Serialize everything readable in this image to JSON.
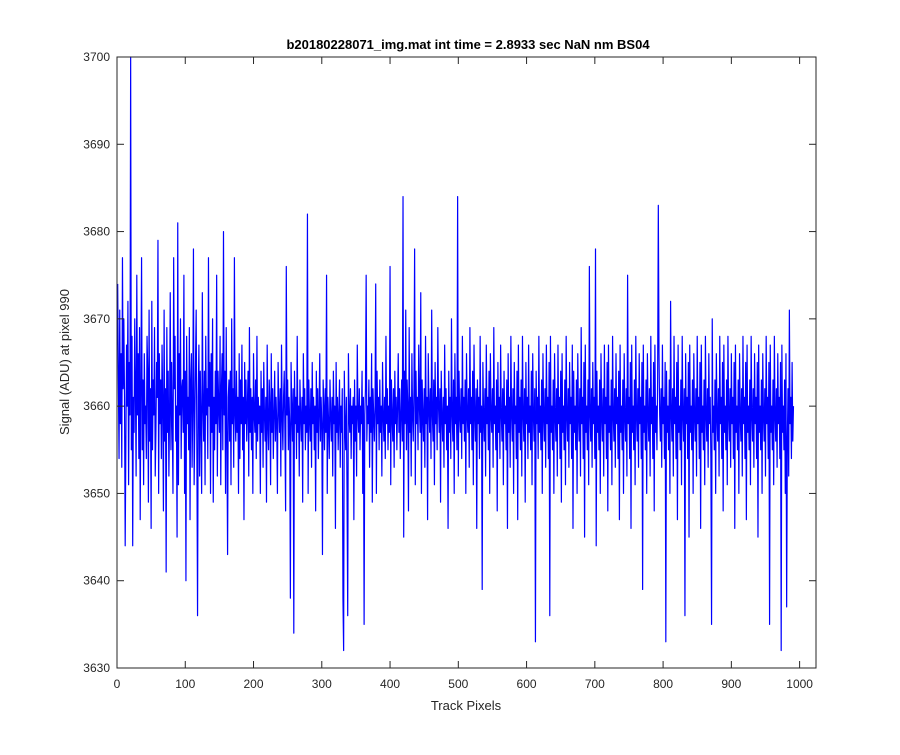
{
  "chart_data": {
    "type": "line",
    "title": "b20180228071_img.mat int time = 2.8933 sec  NaN nm BS04",
    "xlabel": "Track Pixels",
    "ylabel": "Signal (ADU) at pixel 990",
    "xlim": [
      0,
      1024
    ],
    "ylim": [
      3630,
      3700
    ],
    "x_ticks": [
      0,
      100,
      200,
      300,
      400,
      500,
      600,
      700,
      800,
      900,
      1000
    ],
    "y_ticks": [
      3630,
      3640,
      3650,
      3660,
      3670,
      3680,
      3690,
      3700
    ],
    "grid": false,
    "line_color": "#0000ff",
    "series": [
      {
        "name": "",
        "x_start": 1,
        "x_step": 1,
        "values": [
          3674,
          3663,
          3654,
          3671,
          3658,
          3666,
          3653,
          3677,
          3662,
          3670,
          3661,
          3644,
          3656,
          3667,
          3660,
          3672,
          3651,
          3665,
          3659,
          3700,
          3655,
          3668,
          3644,
          3661,
          3657,
          3670,
          3662,
          3652,
          3675,
          3659,
          3666,
          3654,
          3669,
          3647,
          3662,
          3677,
          3655,
          3663,
          3651,
          3666,
          3658,
          3660,
          3654,
          3668,
          3664,
          3649,
          3671,
          3656,
          3662,
          3646,
          3672,
          3655,
          3663,
          3659,
          3669,
          3652,
          3657,
          3665,
          3661,
          3679,
          3650,
          3666,
          3658,
          3663,
          3654,
          3667,
          3660,
          3648,
          3671,
          3656,
          3662,
          3641,
          3669,
          3657,
          3664,
          3652,
          3659,
          3673,
          3655,
          3665,
          3658,
          3650,
          3677,
          3662,
          3668,
          3656,
          3660,
          3645,
          3681,
          3651,
          3666,
          3659,
          3670,
          3654,
          3662,
          3663,
          3657,
          3675,
          3650,
          3664,
          3640,
          3668,
          3658,
          3661,
          3655,
          3669,
          3647,
          3663,
          3666,
          3653,
          3660,
          3678,
          3651,
          3658,
          3665,
          3671,
          3655,
          3636,
          3661,
          3667,
          3652,
          3664,
          3658,
          3650,
          3673,
          3660,
          3656,
          3664,
          3651,
          3668,
          3659,
          3662,
          3654,
          3677,
          3660,
          3665,
          3650,
          3666,
          3657,
          3670,
          3649,
          3661,
          3655,
          3664,
          3658,
          3675,
          3652,
          3664,
          3660,
          3657,
          3668,
          3651,
          3662,
          3666,
          3655,
          3680,
          3659,
          3664,
          3650,
          3669,
          3657,
          3643,
          3661,
          3663,
          3656,
          3664,
          3651,
          3670,
          3658,
          3662,
          3653,
          3677,
          3659,
          3656,
          3664,
          3657,
          3661,
          3650,
          3666,
          3654,
          3663,
          3658,
          3667,
          3655,
          3661,
          3647,
          3665,
          3658,
          3663,
          3656,
          3660,
          3664,
          3652,
          3669,
          3657,
          3662,
          3655,
          3661,
          3650,
          3666,
          3659,
          3657,
          3663,
          3654,
          3668,
          3656,
          3661,
          3658,
          3660,
          3650,
          3664,
          3657,
          3662,
          3653,
          3665,
          3659,
          3656,
          3661,
          3649,
          3667,
          3658,
          3655,
          3663,
          3660,
          3651,
          3666,
          3657,
          3662,
          3654,
          3659,
          3664,
          3656,
          3661,
          3658,
          3650,
          3665,
          3660,
          3657,
          3662,
          3652,
          3667,
          3659,
          3655,
          3661,
          3664,
          3657,
          3648,
          3676,
          3659,
          3663,
          3655,
          3661,
          3658,
          3638,
          3665,
          3660,
          3656,
          3662,
          3634,
          3664,
          3658,
          3661,
          3654,
          3668,
          3657,
          3660,
          3652,
          3663,
          3659,
          3656,
          3661,
          3649,
          3666,
          3658,
          3662,
          3655,
          3660,
          3657,
          3682,
          3650,
          3663,
          3659,
          3656,
          3662,
          3653,
          3665,
          3658,
          3661,
          3655,
          3660,
          3648,
          3664,
          3657,
          3662,
          3654,
          3659,
          3666,
          3656,
          3661,
          3658,
          3643,
          3663,
          3660,
          3655,
          3662,
          3657,
          3675,
          3650,
          3661,
          3658,
          3654,
          3663,
          3659,
          3656,
          3661,
          3652,
          3664,
          3658,
          3660,
          3646,
          3665,
          3657,
          3661,
          3655,
          3659,
          3663,
          3653,
          3660,
          3657,
          3662,
          3638,
          3632,
          3664,
          3658,
          3655,
          3661,
          3650,
          3636,
          3666,
          3659,
          3657,
          3662,
          3654,
          3660,
          3658,
          3661,
          3647,
          3663,
          3656,
          3660,
          3652,
          3667,
          3659,
          3657,
          3662,
          3655,
          3660,
          3658,
          3664,
          3650,
          3661,
          3635,
          3659,
          3662,
          3675,
          3656,
          3660,
          3658,
          3663,
          3653,
          3661,
          3657,
          3666,
          3649,
          3662,
          3659,
          3656,
          3660,
          3674,
          3650,
          3664,
          3658,
          3661,
          3655,
          3663,
          3657,
          3660,
          3652,
          3665,
          3659,
          3656,
          3661,
          3654,
          3668,
          3658,
          3662,
          3655,
          3660,
          3657,
          3676,
          3651,
          3663,
          3659,
          3656,
          3662,
          3653,
          3664,
          3658,
          3661,
          3655,
          3660,
          3666,
          3657,
          3662,
          3654,
          3659,
          3663,
          3656,
          3684,
          3645,
          3664,
          3658,
          3671,
          3655,
          3663,
          3660,
          3648,
          3669,
          3657,
          3661,
          3652,
          3666,
          3659,
          3656,
          3662,
          3678,
          3651,
          3664,
          3658,
          3661,
          3655,
          3667,
          3660,
          3657,
          3673,
          3650,
          3663,
          3659,
          3656,
          3662,
          3653,
          3668,
          3658,
          3661,
          3647,
          3666,
          3660,
          3657,
          3662,
          3654,
          3671,
          3659,
          3656,
          3663,
          3651,
          3665,
          3658,
          3661,
          3655,
          3669,
          3660,
          3657,
          3662,
          3649,
          3664,
          3659,
          3656,
          3661,
          3653,
          3667,
          3658,
          3662,
          3655,
          3660,
          3646,
          3664,
          3657,
          3661,
          3654,
          3670,
          3659,
          3656,
          3663,
          3650,
          3666,
          3658,
          3661,
          3655,
          3684,
          3652,
          3664,
          3659,
          3657,
          3662,
          3654,
          3668,
          3658,
          3661,
          3656,
          3663,
          3650,
          3666,
          3659,
          3657,
          3662,
          3653,
          3669,
          3658,
          3661,
          3655,
          3664,
          3651,
          3667,
          3659,
          3656,
          3662,
          3646,
          3663,
          3658,
          3661,
          3654,
          3668,
          3657,
          3660,
          3639,
          3665,
          3659,
          3656,
          3662,
          3652,
          3667,
          3658,
          3661,
          3655,
          3664,
          3650,
          3666,
          3659,
          3657,
          3662,
          3653,
          3669,
          3658,
          3660,
          3655,
          3663,
          3648,
          3665,
          3657,
          3661,
          3654,
          3667,
          3659,
          3656,
          3662,
          3651,
          3664,
          3658,
          3660,
          3655,
          3663,
          3646,
          3666,
          3657,
          3661,
          3653,
          3668,
          3659,
          3656,
          3662,
          3650,
          3665,
          3658,
          3660,
          3654,
          3664,
          3647,
          3667,
          3657,
          3661,
          3655,
          3663,
          3652,
          3668,
          3659,
          3656,
          3662,
          3649,
          3665,
          3658,
          3661,
          3654,
          3667,
          3657,
          3660,
          3655,
          3664,
          3651,
          3666,
          3659,
          3656,
          3662,
          3633,
          3664,
          3658,
          3661,
          3654,
          3668,
          3657,
          3660,
          3655,
          3663,
          3650,
          3666,
          3659,
          3656,
          3662,
          3653,
          3667,
          3658,
          3661,
          3654,
          3665,
          3636,
          3668,
          3657,
          3660,
          3655,
          3663,
          3650,
          3666,
          3659,
          3656,
          3662,
          3652,
          3667,
          3658,
          3661,
          3654,
          3664,
          3649,
          3666,
          3657,
          3660,
          3655,
          3663,
          3651,
          3668,
          3659,
          3656,
          3662,
          3653,
          3665,
          3658,
          3661,
          3654,
          3667,
          3646,
          3664,
          3657,
          3660,
          3655,
          3663,
          3650,
          3666,
          3659,
          3656,
          3662,
          3652,
          3669,
          3658,
          3661,
          3654,
          3665,
          3645,
          3667,
          3657,
          3660,
          3655,
          3663,
          3651,
          3676,
          3659,
          3656,
          3662,
          3653,
          3665,
          3658,
          3661,
          3654,
          3678,
          3644,
          3664,
          3657,
          3660,
          3655,
          3663,
          3650,
          3666,
          3659,
          3656,
          3662,
          3652,
          3667,
          3658,
          3661,
          3654,
          3665,
          3648,
          3667,
          3657,
          3660,
          3655,
          3663,
          3651,
          3668,
          3659,
          3656,
          3662,
          3653,
          3666,
          3658,
          3661,
          3654,
          3664,
          3647,
          3667,
          3657,
          3660,
          3655,
          3663,
          3650,
          3666,
          3659,
          3656,
          3662,
          3652,
          3675,
          3658,
          3661,
          3654,
          3665,
          3646,
          3667,
          3657,
          3660,
          3655,
          3663,
          3651,
          3668,
          3659,
          3656,
          3662,
          3653,
          3666,
          3658,
          3661,
          3654,
          3665,
          3639,
          3667,
          3657,
          3660,
          3655,
          3663,
          3650,
          3666,
          3659,
          3656,
          3662,
          3652,
          3668,
          3658,
          3661,
          3654,
          3665,
          3648,
          3667,
          3657,
          3660,
          3655,
          3663,
          3683,
          3666,
          3659,
          3656,
          3662,
          3653,
          3667,
          3658,
          3661,
          3654,
          3665,
          3633,
          3664,
          3657,
          3660,
          3655,
          3663,
          3650,
          3672,
          3659,
          3656,
          3662,
          3652,
          3668,
          3658,
          3661,
          3654,
          3665,
          3647,
          3667,
          3657,
          3660,
          3655,
          3663,
          3651,
          3668,
          3659,
          3656,
          3662,
          3636,
          3666,
          3658,
          3661,
          3654,
          3665,
          3645,
          3667,
          3657,
          3660,
          3655,
          3663,
          3650,
          3666,
          3659,
          3656,
          3662,
          3652,
          3668,
          3658,
          3661,
          3654,
          3665,
          3646,
          3667,
          3657,
          3660,
          3655,
          3663,
          3651,
          3668,
          3659,
          3656,
          3662,
          3653,
          3666,
          3658,
          3661,
          3654,
          3635,
          3670,
          3657,
          3660,
          3655,
          3663,
          3650,
          3666,
          3659,
          3656,
          3662,
          3652,
          3668,
          3658,
          3661,
          3654,
          3665,
          3648,
          3667,
          3657,
          3660,
          3655,
          3663,
          3651,
          3668,
          3659,
          3656,
          3662,
          3653,
          3666,
          3658,
          3661,
          3654,
          3665,
          3646,
          3667,
          3657,
          3660,
          3655,
          3663,
          3650,
          3666,
          3659,
          3656,
          3662,
          3652,
          3668,
          3658,
          3661,
          3654,
          3665,
          3647,
          3667,
          3657,
          3660,
          3655,
          3663,
          3651,
          3668,
          3659,
          3656,
          3662,
          3653,
          3666,
          3658,
          3661,
          3654,
          3665,
          3645,
          3667,
          3657,
          3660,
          3655,
          3663,
          3650,
          3666,
          3659,
          3656,
          3662,
          3652,
          3668,
          3658,
          3661,
          3654,
          3665,
          3635,
          3667,
          3657,
          3660,
          3655,
          3663,
          3651,
          3668,
          3659,
          3656,
          3662,
          3653,
          3666,
          3658,
          3661,
          3654,
          3665,
          3632,
          3667,
          3657,
          3660,
          3655,
          3663,
          3650,
          3666,
          3637,
          3656,
          3662,
          3652,
          3671,
          3658,
          3661,
          3654,
          3665,
          3656,
          3660
        ]
      }
    ]
  }
}
